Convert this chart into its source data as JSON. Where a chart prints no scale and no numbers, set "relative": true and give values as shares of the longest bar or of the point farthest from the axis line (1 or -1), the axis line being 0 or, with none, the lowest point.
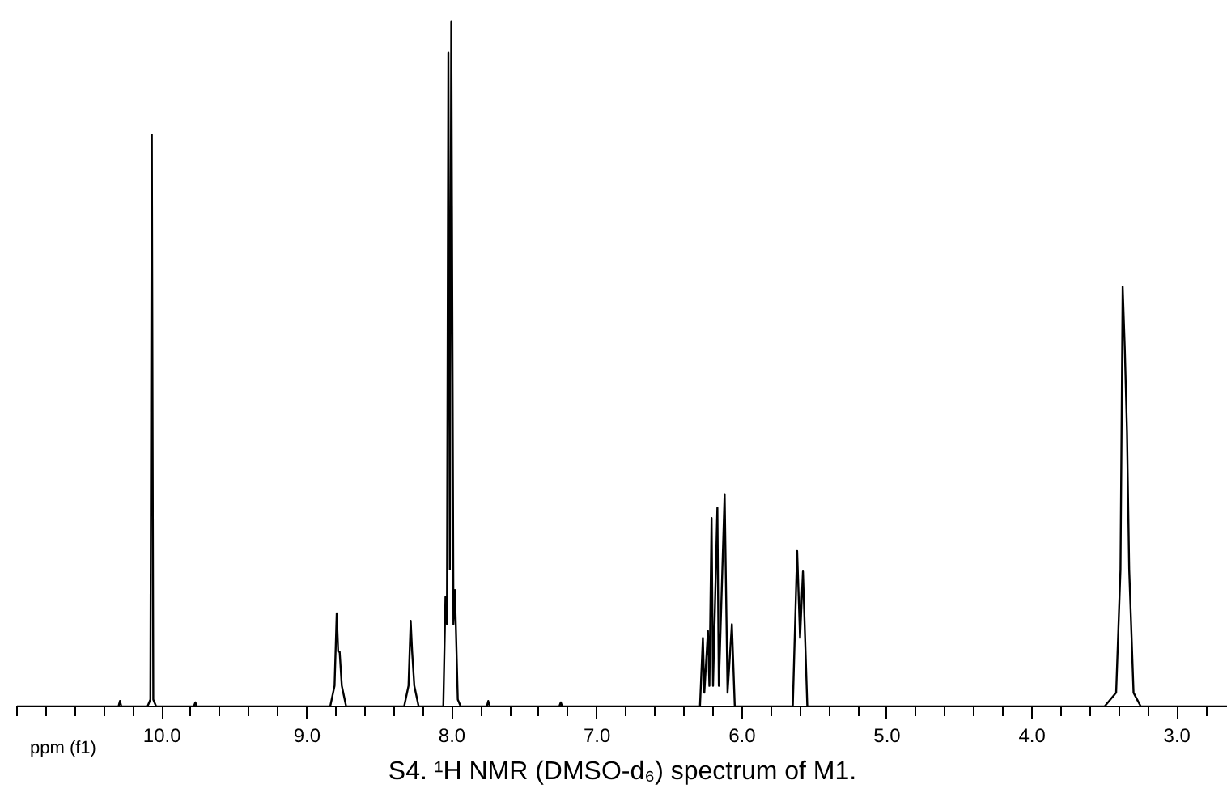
{
  "chart_data": {
    "type": "line",
    "relative": true,
    "title": "S4. ¹H NMR (DMSO-d₆) spectrum of M1.",
    "xlabel": "ppm (f1)",
    "xlim": [
      11.0,
      2.65
    ],
    "xticks": [
      {
        "value": 10.0,
        "label": "10.0"
      },
      {
        "value": 9.0,
        "label": "9.0"
      },
      {
        "value": 8.0,
        "label": "8.0"
      },
      {
        "value": 7.0,
        "label": "7.0"
      },
      {
        "value": 6.0,
        "label": "6.0"
      },
      {
        "value": 5.0,
        "label": "5.0"
      },
      {
        "value": 4.0,
        "label": "4.0"
      },
      {
        "value": 3.0,
        "label": "3.0"
      }
    ],
    "series": [
      {
        "color": "#000000",
        "x": [
          11.0,
          10.3,
          10.29,
          10.28,
          10.1,
          10.08,
          10.07,
          10.06,
          10.04,
          9.78,
          9.77,
          9.76,
          8.84,
          8.81,
          8.795,
          8.785,
          8.775,
          8.76,
          8.73,
          8.33,
          8.3,
          8.285,
          8.275,
          8.26,
          8.23,
          8.06,
          8.045,
          8.035,
          8.025,
          8.015,
          8.005,
          7.99,
          7.98,
          7.96,
          7.94,
          7.76,
          7.75,
          7.74,
          7.26,
          7.25,
          7.24,
          6.29,
          6.27,
          6.26,
          6.235,
          6.225,
          6.21,
          6.2,
          6.17,
          6.16,
          6.12,
          6.1,
          6.07,
          6.05,
          5.65,
          5.62,
          5.6,
          5.58,
          5.55,
          3.5,
          3.42,
          3.39,
          3.375,
          3.36,
          3.345,
          3.33,
          3.3,
          3.25,
          2.65
        ],
        "values": [
          0,
          0,
          0.008,
          0,
          0,
          0.01,
          0.835,
          0.01,
          0,
          0,
          0.006,
          0,
          0,
          0.03,
          0.136,
          0.08,
          0.08,
          0.03,
          0,
          0,
          0.03,
          0.125,
          0.08,
          0.03,
          0,
          0,
          0.16,
          0.12,
          0.955,
          0.2,
          1.0,
          0.12,
          0.17,
          0.01,
          0,
          0,
          0.008,
          0,
          0,
          0.006,
          0,
          0,
          0.1,
          0.02,
          0.11,
          0.03,
          0.275,
          0.03,
          0.29,
          0.03,
          0.31,
          0.02,
          0.12,
          0,
          0,
          0.227,
          0.1,
          0.197,
          0,
          0,
          0.02,
          0.2,
          0.613,
          0.52,
          0.4,
          0.2,
          0.02,
          0,
          0
        ]
      }
    ]
  }
}
